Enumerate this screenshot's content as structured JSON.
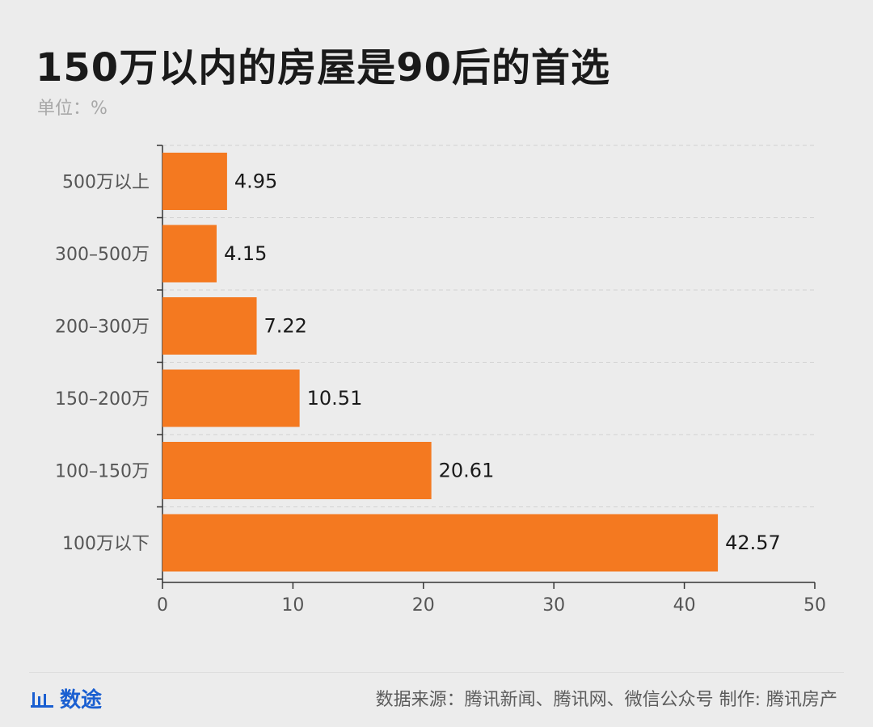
{
  "chart_data": {
    "type": "bar",
    "orientation": "horizontal",
    "title": "150万以内的房屋是90后的首选",
    "subtitle": "单位：%",
    "categories": [
      "500万以上",
      "300–500万",
      "200–300万",
      "150–200万",
      "100–150万",
      "100万以下"
    ],
    "values": [
      4.95,
      4.15,
      7.22,
      10.51,
      20.61,
      42.57
    ],
    "value_labels": [
      "4.95",
      "4.15",
      "7.22",
      "10.51",
      "20.61",
      "42.57"
    ],
    "xlim": [
      0,
      50
    ],
    "xticks": [
      0,
      10,
      20,
      30,
      40,
      50
    ],
    "grid": "dashed-horizontal",
    "bar_color": "#f47920"
  },
  "footer": {
    "brand": "数途",
    "brand_icon": "bar-chart-icon",
    "brand_color": "#1a5fd1",
    "source": "数据来源：腾讯新闻、腾讯网、微信公众号  制作: 腾讯房产"
  }
}
